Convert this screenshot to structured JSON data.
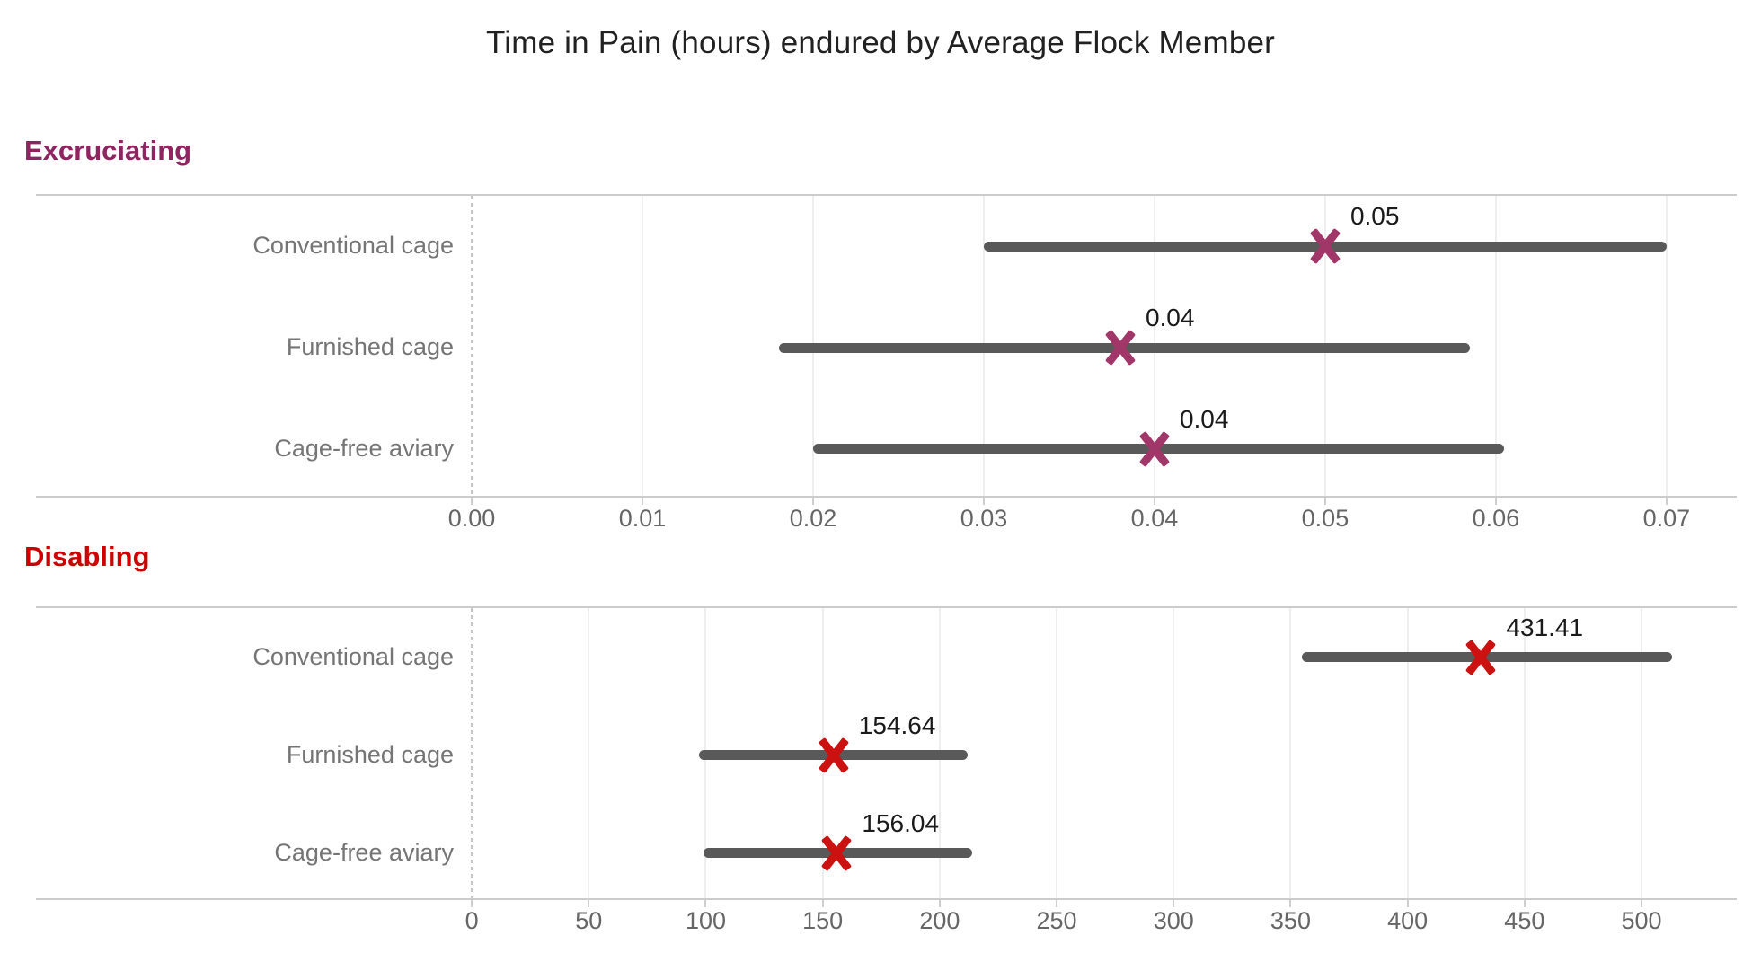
{
  "title": "Time in Pain (hours) endured by Average Flock Member",
  "chart_data": [
    {
      "type": "scatter",
      "subtype": "dot-with-range",
      "panel_label": "Excruciating",
      "header_color": "#8F2460",
      "marker_color": "#A13768",
      "bar_color": "#595959",
      "xdomain": [
        -0.02553,
        0.07411
      ],
      "xticks": [
        0,
        0.01,
        0.02,
        0.03,
        0.04,
        0.05,
        0.06,
        0.07
      ],
      "xtick_labels": [
        "0.00",
        "0.01",
        "0.02",
        "0.03",
        "0.04",
        "0.05",
        "0.06",
        "0.07"
      ],
      "grid": "vertical-only",
      "zero_line": "dotted",
      "rows": [
        {
          "category": "Conventional cage",
          "point": 0.05,
          "low": 0.03,
          "high": 0.07,
          "label": "0.05"
        },
        {
          "category": "Furnished cage",
          "point": 0.038,
          "low": 0.018,
          "high": 0.0585,
          "label": "0.04"
        },
        {
          "category": "Cage-free aviary",
          "point": 0.04,
          "low": 0.02,
          "high": 0.0605,
          "label": "0.04"
        }
      ]
    },
    {
      "type": "scatter",
      "subtype": "dot-with-range",
      "panel_label": "Disabling",
      "header_color": "#CC0000",
      "marker_color": "#CC1111",
      "bar_color": "#595959",
      "xdomain": [
        -186.3,
        540.7
      ],
      "xticks": [
        0,
        50,
        100,
        150,
        200,
        250,
        300,
        350,
        400,
        450,
        500
      ],
      "xtick_labels": [
        "0",
        "50",
        "100",
        "150",
        "200",
        "250",
        "300",
        "350",
        "400",
        "450",
        "500"
      ],
      "grid": "vertical-only",
      "zero_line": "dotted",
      "rows": [
        {
          "category": "Conventional cage",
          "point": 431.41,
          "low": 355,
          "high": 513,
          "label": "431.41"
        },
        {
          "category": "Furnished cage",
          "point": 154.64,
          "low": 97,
          "high": 212,
          "label": "154.64"
        },
        {
          "category": "Cage-free aviary",
          "point": 156.04,
          "low": 99,
          "high": 214,
          "label": "156.04"
        }
      ]
    }
  ]
}
